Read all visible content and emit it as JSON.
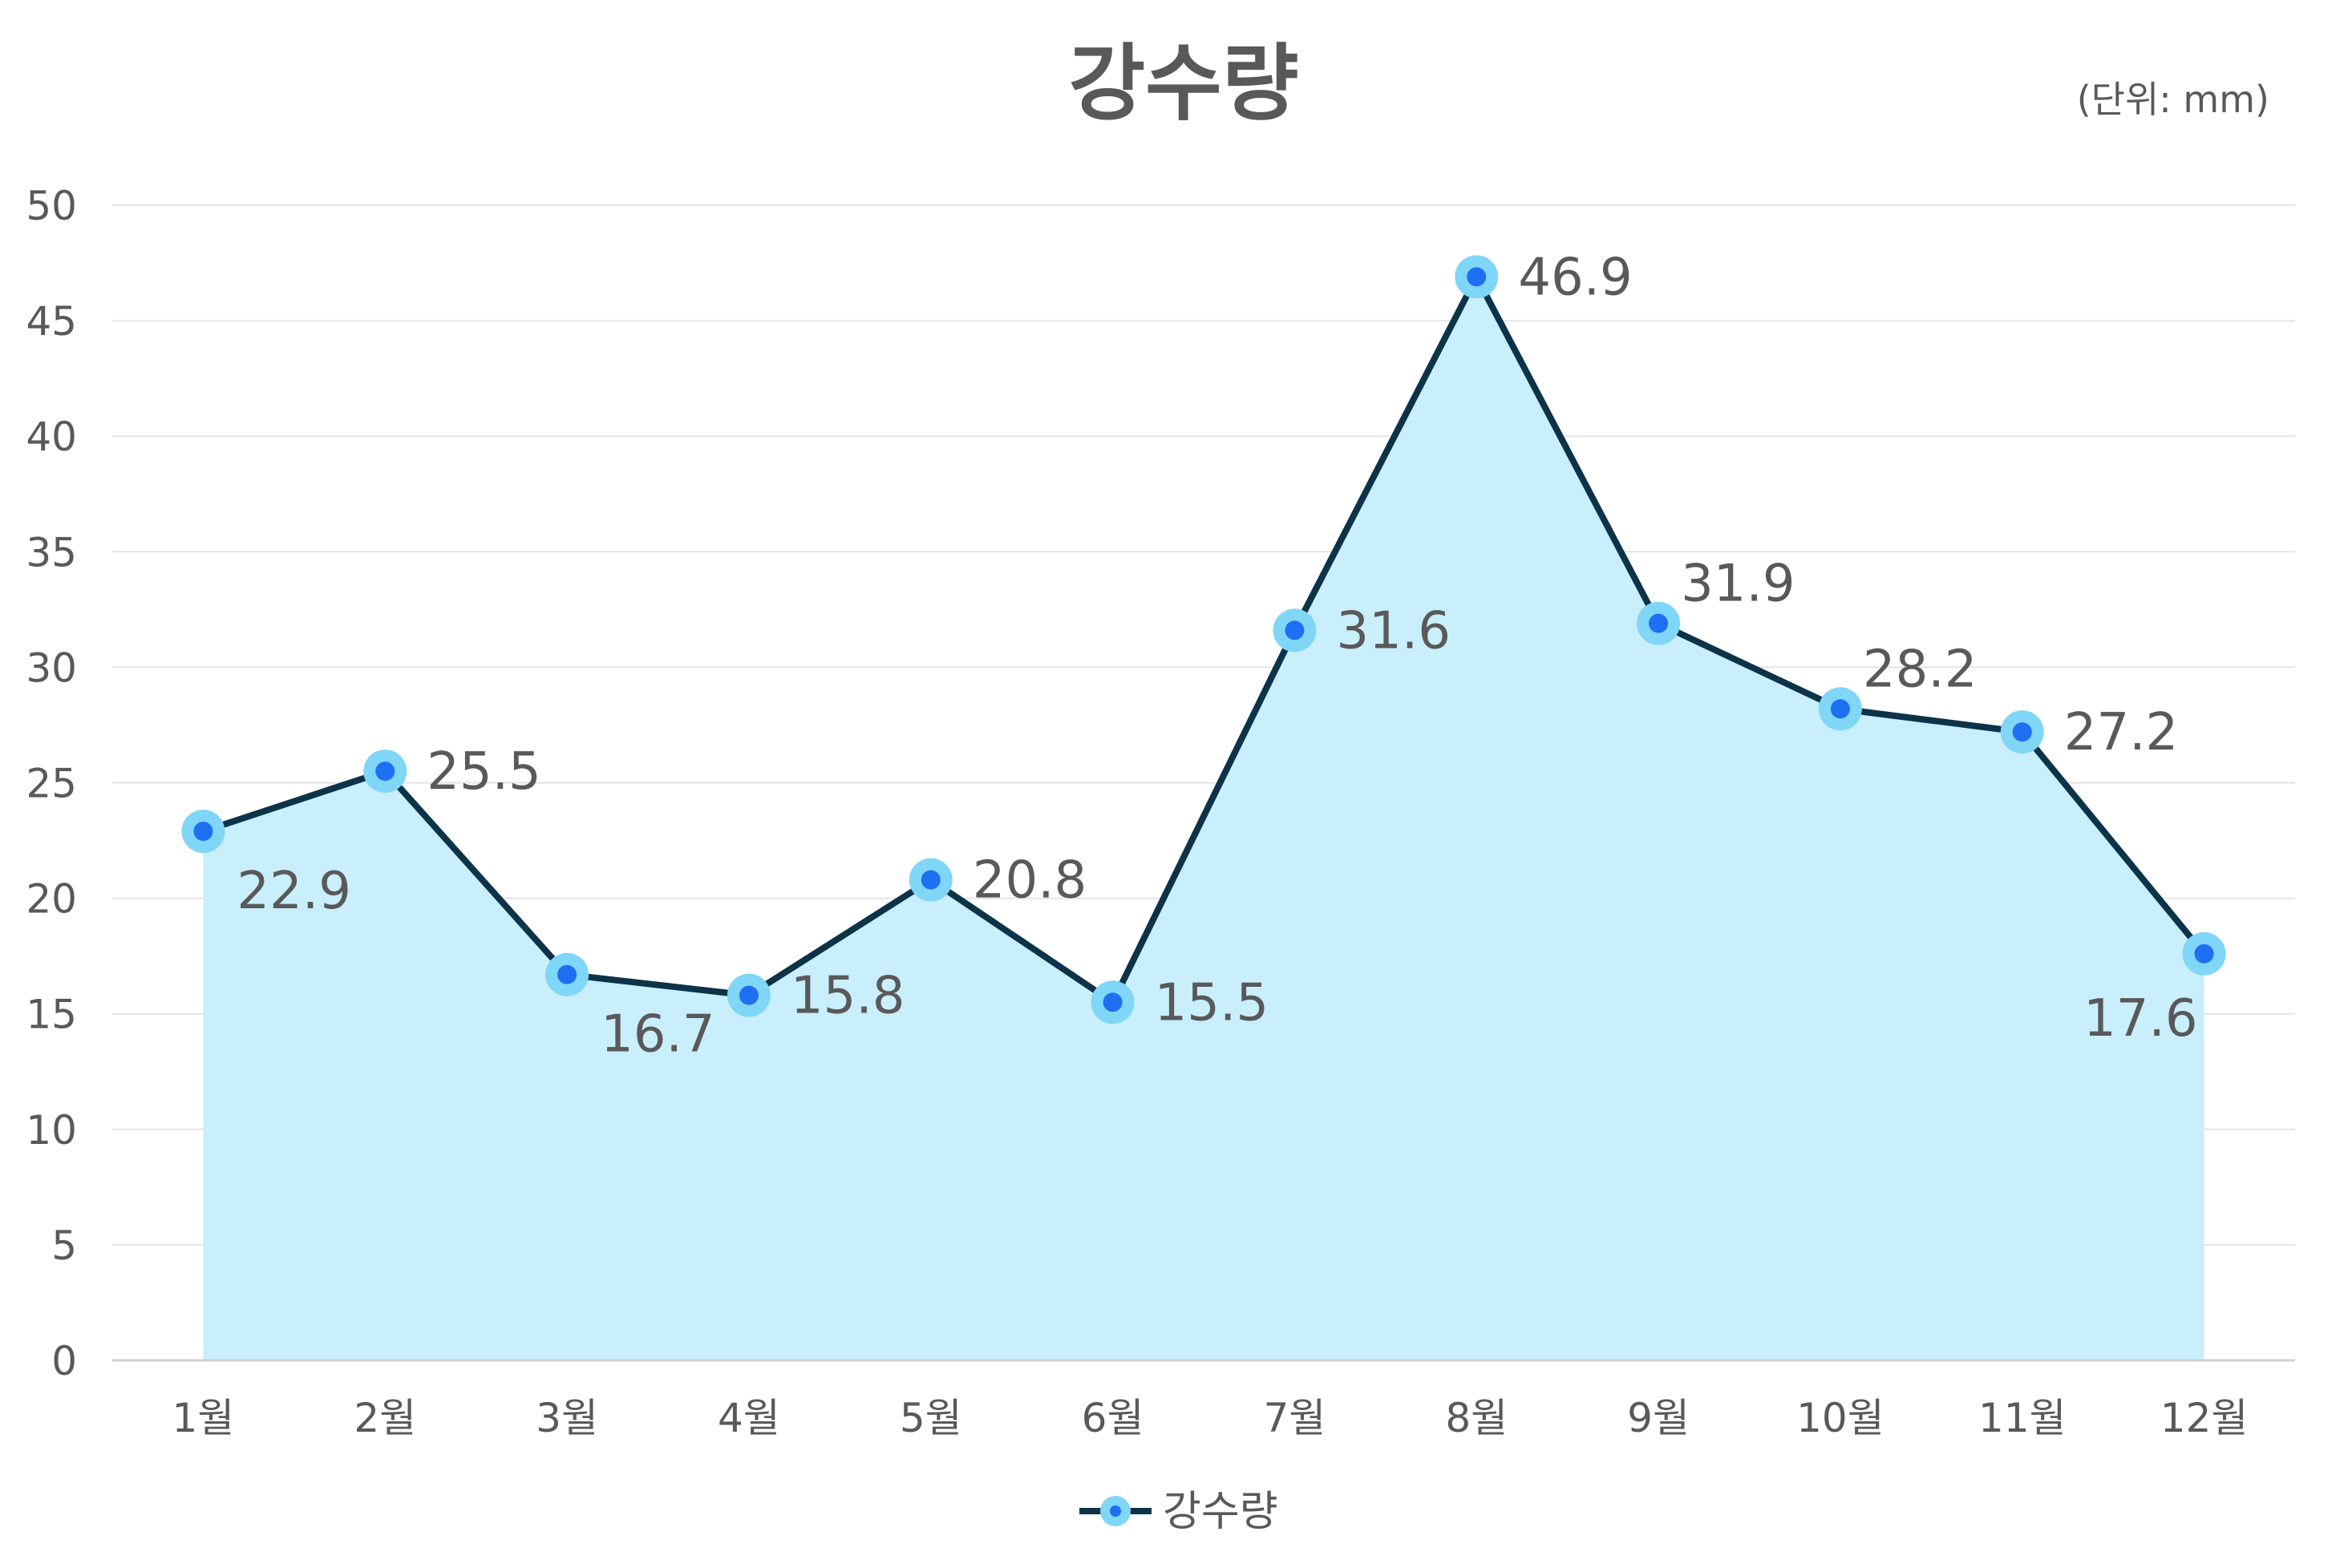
{
  "chart_data": {
    "type": "area",
    "title": "강수량",
    "unit_label": "(단위: mm)",
    "xlabel": "",
    "ylabel": "",
    "categories": [
      "1월",
      "2월",
      "3월",
      "4월",
      "5월",
      "6월",
      "7월",
      "8월",
      "9월",
      "10월",
      "11월",
      "12월"
    ],
    "series": [
      {
        "name": "강수량",
        "values": [
          22.9,
          25.5,
          16.7,
          15.8,
          20.8,
          15.5,
          31.6,
          46.9,
          31.9,
          28.2,
          27.2,
          17.6
        ]
      }
    ],
    "ylim": [
      0,
      50
    ],
    "yticks": [
      0,
      5,
      10,
      15,
      20,
      25,
      30,
      35,
      40,
      45,
      50
    ],
    "grid": true,
    "legend": "bottom",
    "data_labels": true,
    "colors": {
      "line": "#0d3349",
      "fill": "#c9eefc",
      "marker_outer": "#7fd6f7",
      "marker_inner": "#1f6ff2",
      "grid": "#e4e4e4",
      "axis": "#d0d0d0",
      "text": "#595959"
    }
  }
}
